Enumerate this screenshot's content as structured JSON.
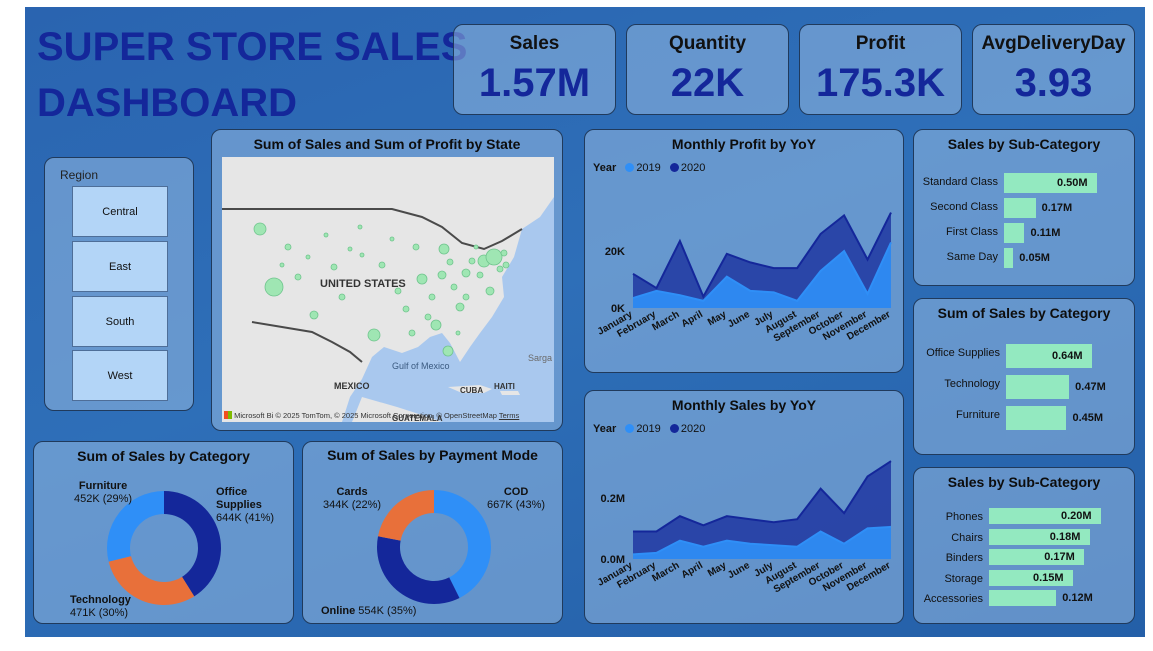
{
  "dashboard": {
    "title_line1": "SUPER STORE SALES",
    "title_line2": "DASHBOARD"
  },
  "kpis": [
    {
      "label": "Sales",
      "value": "1.57M"
    },
    {
      "label": "Quantity",
      "value": "22K"
    },
    {
      "label": "Profit",
      "value": "175.3K"
    },
    {
      "label": "AvgDeliveryDay",
      "value": "3.93"
    }
  ],
  "region_slicer": {
    "title": "Region",
    "options": [
      "Central",
      "East",
      "South",
      "West"
    ]
  },
  "map": {
    "title": "Sum of Sales and Sum of Profit by State",
    "country_label": "UNITED STATES",
    "place_labels": [
      "MEXICO",
      "Gulf of Mexico",
      "CUBA",
      "HAITI",
      "GUATEMALA",
      "Sarga"
    ],
    "attribution": "© 2025 TomTom, © 2025 Microsoft Corporation, © OpenStreetMap",
    "terms": "Terms",
    "ms_brand": "Microsoft Bi",
    "colors": {
      "land": "#e6e6e6",
      "water": "#a9c8ee",
      "bubble": "#9fe6b3"
    }
  },
  "monthly_profit": {
    "title": "Monthly Profit by YoY",
    "legend_title": "Year",
    "series_names": [
      "2019",
      "2020"
    ],
    "colors": [
      "#2f8ff7",
      "#14279a"
    ],
    "chart_data": {
      "type": "area",
      "title": "Monthly Profit by YoY",
      "categories": [
        "January",
        "February",
        "March",
        "April",
        "May",
        "June",
        "July",
        "August",
        "September",
        "October",
        "November",
        "December"
      ],
      "series": [
        {
          "name": "2019",
          "values": [
            3500,
            6000,
            4500,
            2500,
            11000,
            6000,
            5500,
            2500,
            13000,
            20000,
            5000,
            23000
          ]
        },
        {
          "name": "2020",
          "values": [
            12000,
            7000,
            23500,
            4000,
            19000,
            16000,
            14000,
            14000,
            26000,
            32500,
            17000,
            33500
          ]
        }
      ],
      "y_ticks": [
        {
          "v": 0,
          "label": "0K"
        },
        {
          "v": 20000,
          "label": "20K"
        }
      ],
      "ylim": [
        0,
        40000
      ]
    }
  },
  "monthly_sales": {
    "title": "Monthly Sales by YoY",
    "legend_title": "Year",
    "series_names": [
      "2019",
      "2020"
    ],
    "colors": [
      "#2f8ff7",
      "#14279a"
    ],
    "chart_data": {
      "type": "area",
      "title": "Monthly Sales by YoY",
      "categories": [
        "January",
        "February",
        "March",
        "April",
        "May",
        "June",
        "July",
        "August",
        "September",
        "October",
        "November",
        "December"
      ],
      "series": [
        {
          "name": "2019",
          "values": [
            0.015,
            0.02,
            0.06,
            0.04,
            0.06,
            0.05,
            0.045,
            0.04,
            0.09,
            0.05,
            0.1,
            0.105
          ]
        },
        {
          "name": "2020",
          "values": [
            0.09,
            0.09,
            0.14,
            0.11,
            0.14,
            0.13,
            0.12,
            0.13,
            0.23,
            0.15,
            0.27,
            0.32
          ]
        }
      ],
      "y_ticks": [
        {
          "v": 0,
          "label": "0.0M"
        },
        {
          "v": 0.2,
          "label": "0.2M"
        }
      ],
      "ylim": [
        0,
        0.34
      ]
    }
  },
  "sales_by_category_donut": {
    "title": "Sum of Sales by Category",
    "labels": [
      {
        "name": "Furniture",
        "value": "452K (29%)"
      },
      {
        "name": "Office Supplies",
        "value": "644K (41%)"
      },
      {
        "name": "Technology",
        "value": "471K (30%)"
      }
    ],
    "chart_data": {
      "type": "pie",
      "title": "Sum of Sales by Category",
      "categories": [
        "Office Supplies",
        "Technology",
        "Furniture"
      ],
      "values": [
        644,
        471,
        452
      ],
      "colors": [
        "#14279a",
        "#e8703a",
        "#2f8ff7"
      ]
    }
  },
  "payment_mode_donut": {
    "title": "Sum of Sales by Payment Mode",
    "labels": [
      {
        "name": "Cards",
        "value": "344K (22%)"
      },
      {
        "name": "COD",
        "value": "667K (43%)"
      },
      {
        "name": "Online",
        "value": "554K (35%)"
      }
    ],
    "chart_data": {
      "type": "pie",
      "title": "Sum of Sales by Payment Mode",
      "categories": [
        "COD",
        "Online",
        "Cards"
      ],
      "values": [
        667,
        554,
        344
      ],
      "colors": [
        "#2f8ff7",
        "#14279a",
        "#e8703a"
      ]
    }
  },
  "sales_by_ship_mode": {
    "title": "Sales by Sub-Category",
    "chart_data": {
      "type": "bar",
      "title": "Sales by Sub-Category",
      "categories": [
        "Standard Class",
        "Second Class",
        "First Class",
        "Same Day"
      ],
      "values": [
        0.5,
        0.17,
        0.11,
        0.05
      ],
      "labels": [
        "0.50M",
        "0.17M",
        "0.11M",
        "0.05M"
      ],
      "max": 0.5
    }
  },
  "sales_by_category_bar": {
    "title": "Sum of Sales by Category",
    "chart_data": {
      "type": "bar",
      "title": "Sum of Sales by Category",
      "categories": [
        "Office Supplies",
        "Technology",
        "Furniture"
      ],
      "values": [
        0.64,
        0.47,
        0.45
      ],
      "labels": [
        "0.64M",
        "0.47M",
        "0.45M"
      ],
      "max": 0.64
    }
  },
  "sales_by_subcategory": {
    "title": "Sales by Sub-Category",
    "chart_data": {
      "type": "bar",
      "title": "Sales by Sub-Category",
      "categories": [
        "Phones",
        "Chairs",
        "Binders",
        "Storage",
        "Accessories"
      ],
      "values": [
        0.2,
        0.18,
        0.17,
        0.15,
        0.12
      ],
      "labels": [
        "0.20M",
        "0.18M",
        "0.17M",
        "0.15M",
        "0.12M"
      ],
      "max": 0.2
    }
  }
}
